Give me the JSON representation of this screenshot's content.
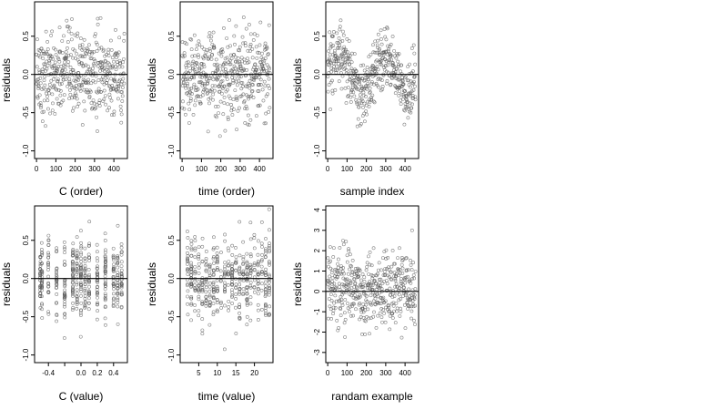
{
  "chart_data": [
    {
      "type": "scatter",
      "id": "c-order",
      "xlabel": "C (order)",
      "ylabel": "residuals",
      "xlim": [
        -10,
        470
      ],
      "ylim": [
        -1.1,
        0.95
      ],
      "xticks": [
        0,
        100,
        200,
        300,
        400
      ],
      "xtick_labels": [
        "0",
        "100",
        "200",
        "300",
        "400"
      ],
      "yticks": [
        0.5,
        0.0,
        -0.5,
        -1.0
      ],
      "ytick_labels": [
        "0.5",
        "0.0",
        "-0.5",
        "-1.0"
      ],
      "hline": 0,
      "pattern": "order",
      "n": 460,
      "spread": 0.3,
      "grid": false
    },
    {
      "type": "scatter",
      "id": "time-order",
      "xlabel": "time (order)",
      "ylabel": "residuals",
      "xlim": [
        -10,
        470
      ],
      "ylim": [
        -1.1,
        0.95
      ],
      "xticks": [
        0,
        100,
        200,
        300,
        400
      ],
      "xtick_labels": [
        "0",
        "100",
        "200",
        "300",
        "400"
      ],
      "yticks": [
        0.5,
        0.0,
        -0.5,
        -1.0
      ],
      "ytick_labels": [
        "0.5",
        "0.0",
        "-0.5",
        "-1.0"
      ],
      "hline": 0,
      "pattern": "order",
      "n": 460,
      "spread": 0.3,
      "grid": false
    },
    {
      "type": "scatter",
      "id": "sample-index",
      "xlabel": "sample index",
      "ylabel": "residuals",
      "xlim": [
        -10,
        470
      ],
      "ylim": [
        -1.1,
        0.95
      ],
      "xticks": [
        0,
        100,
        200,
        300,
        400
      ],
      "xtick_labels": [
        "0",
        "100",
        "200",
        "300",
        "400"
      ],
      "yticks": [
        0.5,
        0.0,
        -0.5,
        -1.0
      ],
      "ytick_labels": [
        "0.5",
        "0.0",
        "-0.5",
        "-1.0"
      ],
      "hline": 0,
      "pattern": "wave",
      "n": 460,
      "spread": 0.2,
      "grid": false
    },
    {
      "type": "scatter",
      "id": "c-value",
      "xlabel": "C (value)",
      "ylabel": "residuals",
      "xlim": [
        -0.57,
        0.57
      ],
      "ylim": [
        -1.1,
        0.95
      ],
      "xticks": [
        -0.4,
        -0.2,
        0.0,
        0.2,
        0.4
      ],
      "xtick_labels": [
        "-0.4",
        "",
        "0.0",
        "0.2",
        "0.4"
      ],
      "yticks": [
        0.5,
        0.0,
        -0.5,
        -1.0
      ],
      "ytick_labels": [
        "0.5",
        "0.0",
        "-0.5",
        "-1.0"
      ],
      "hline": 0,
      "pattern": "columns",
      "columns": [
        -0.5,
        -0.48,
        -0.4,
        -0.3,
        -0.2,
        -0.1,
        -0.05,
        0.0,
        0.05,
        0.1,
        0.2,
        0.3,
        0.4,
        0.45,
        0.5
      ],
      "n": 460,
      "spread": 0.3,
      "grid": false
    },
    {
      "type": "scatter",
      "id": "time-value",
      "xlabel": "time (value)",
      "ylabel": "residuals",
      "xlim": [
        0,
        25
      ],
      "ylim": [
        -1.1,
        0.95
      ],
      "xticks": [
        5,
        10,
        15,
        20
      ],
      "xtick_labels": [
        "5",
        "10",
        "15",
        "20"
      ],
      "yticks": [
        0.5,
        0.0,
        -0.5,
        -1.0
      ],
      "ytick_labels": [
        "0.5",
        "0.0",
        "-0.5",
        "-1.0"
      ],
      "hline": 0,
      "pattern": "columns",
      "columns": [
        2,
        3,
        4,
        5,
        6,
        7,
        8,
        9,
        10,
        11,
        12,
        13,
        14,
        15,
        16,
        17,
        18,
        19,
        20,
        21,
        22,
        23,
        24
      ],
      "n": 460,
      "spread": 0.3,
      "grid": false
    },
    {
      "type": "scatter",
      "id": "random-example",
      "xlabel": "randam example",
      "ylabel": "residuals",
      "xlim": [
        -10,
        470
      ],
      "ylim": [
        -3.5,
        4.2
      ],
      "xticks": [
        0,
        100,
        200,
        300,
        400
      ],
      "xtick_labels": [
        "0",
        "100",
        "200",
        "300",
        "400"
      ],
      "yticks": [
        4,
        3,
        2,
        1,
        0,
        -1,
        -2,
        -3
      ],
      "ytick_labels": [
        "4",
        "3",
        "2",
        "1",
        "0",
        "-1",
        "-2",
        "-3"
      ],
      "hline": 0,
      "pattern": "order",
      "n": 460,
      "spread": 1.0,
      "grid": false
    }
  ]
}
